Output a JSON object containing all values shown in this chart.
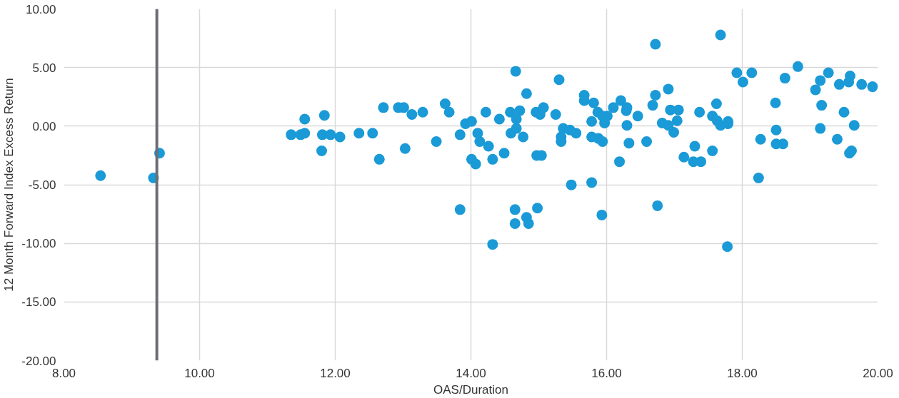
{
  "chart_data": {
    "type": "scatter",
    "xlabel": "OAS/Duration",
    "ylabel": "12 Month Forward Index Excess Return",
    "x": [
      8.54,
      9.32,
      9.41,
      11.35,
      11.49,
      11.55,
      11.55,
      11.84,
      11.81,
      11.8,
      11.93,
      12.07,
      12.35,
      12.55,
      12.65,
      12.71,
      12.93,
      13.01,
      13.03,
      13.13,
      13.29,
      13.49,
      13.62,
      13.68,
      13.84,
      13.84,
      13.92,
      14.01,
      14.01,
      14.07,
      14.1,
      14.13,
      14.22,
      14.26,
      14.32,
      14.32,
      14.42,
      14.49,
      14.58,
      14.59,
      14.66,
      14.65,
      14.65,
      14.67,
      14.67,
      14.72,
      14.77,
      14.82,
      14.82,
      14.85,
      14.96,
      14.97,
      14.98,
      15.02,
      15.07,
      15.04,
      15.25,
      15.3,
      15.33,
      15.33,
      15.36,
      15.48,
      15.46,
      15.55,
      15.67,
      15.67,
      15.78,
      15.78,
      15.78,
      15.81,
      15.87,
      15.93,
      15.88,
      15.94,
      15.94,
      15.97,
      16.01,
      16.1,
      16.21,
      16.19,
      16.29,
      16.3,
      16.3,
      16.33,
      16.46,
      16.59,
      16.68,
      16.72,
      16.72,
      16.75,
      16.82,
      16.91,
      16.91,
      16.94,
      16.99,
      17.06,
      17.04,
      17.14,
      17.28,
      17.3,
      17.37,
      17.39,
      17.56,
      17.56,
      17.62,
      17.63,
      17.68,
      17.68,
      17.79,
      17.79,
      17.78,
      17.92,
      18.01,
      18.14,
      18.24,
      18.27,
      18.49,
      18.5,
      18.5,
      18.6,
      18.63,
      18.82,
      19.08,
      19.15,
      19.15,
      19.17,
      19.27,
      19.4,
      19.43,
      19.5,
      19.57,
      19.59,
      19.58,
      19.61,
      19.65,
      19.76,
      19.92
    ],
    "series": [
      {
        "color": "#1a9ad6",
        "values": [
          -4.22,
          -4.42,
          -2.31,
          -0.73,
          -0.73,
          -0.6,
          0.6,
          0.92,
          -0.73,
          -2.11,
          -0.73,
          -0.92,
          -0.6,
          -0.6,
          -2.83,
          1.58,
          1.58,
          1.58,
          -1.91,
          0.99,
          1.19,
          -1.32,
          1.91,
          1.19,
          -0.73,
          -7.12,
          0.2,
          0.4,
          -2.83,
          -3.23,
          -0.6,
          -1.32,
          1.19,
          -1.71,
          -2.83,
          -10.09,
          0.6,
          -2.31,
          1.19,
          -0.6,
          4.68,
          -7.12,
          -8.31,
          0.6,
          -0.2,
          1.32,
          -0.92,
          2.77,
          -7.78,
          -8.31,
          1.19,
          -2.5,
          -6.99,
          0.99,
          1.58,
          -2.5,
          0.99,
          3.96,
          -1.32,
          -0.92,
          -0.2,
          -5.01,
          -0.33,
          -0.6,
          2.64,
          2.18,
          -0.92,
          -4.81,
          0.4,
          1.98,
          1.19,
          -7.58,
          -1.05,
          -1.32,
          0.86,
          0.26,
          0.86,
          1.58,
          2.18,
          -3.03,
          1.32,
          1.58,
          0.07,
          -1.45,
          0.86,
          -1.32,
          1.78,
          6.99,
          2.64,
          -6.79,
          0.26,
          0.07,
          3.16,
          1.38,
          -0.53,
          1.38,
          0.46,
          -2.64,
          -3.03,
          -1.71,
          1.19,
          -3.03,
          -2.11,
          0.86,
          1.91,
          0.46,
          7.78,
          0.07,
          0.4,
          0.2,
          -10.28,
          4.55,
          3.76,
          4.55,
          -4.42,
          -1.12,
          1.98,
          -0.33,
          -1.52,
          -1.52,
          4.09,
          5.08,
          3.1,
          3.89,
          -0.2,
          1.78,
          4.55,
          -1.12,
          3.56,
          1.19,
          3.76,
          4.28,
          -2.31,
          -2.11,
          0.07,
          3.56,
          3.36
        ]
      }
    ],
    "xlim": [
      8,
      20
    ],
    "ylim": [
      -20,
      10
    ],
    "xticks": [
      {
        "value": 8,
        "label": "8.00"
      },
      {
        "value": 10,
        "label": "10.00"
      },
      {
        "value": 12,
        "label": "12.00"
      },
      {
        "value": 14,
        "label": "14.00"
      },
      {
        "value": 16,
        "label": "16.00"
      },
      {
        "value": 18,
        "label": "18.00"
      },
      {
        "value": 20,
        "label": "20.00"
      }
    ],
    "yticks": [
      {
        "value": -20,
        "label": "-20.00"
      },
      {
        "value": -15,
        "label": "-15.00"
      },
      {
        "value": -10,
        "label": "-10.00"
      },
      {
        "value": -5,
        "label": "-5.00"
      },
      {
        "value": 0,
        "label": "0.00"
      },
      {
        "value": 5,
        "label": "5.00"
      },
      {
        "value": 10,
        "label": "10.00"
      }
    ],
    "ref_lines": [
      {
        "axis": "x",
        "value": 9.37,
        "color": "#6d6e71"
      }
    ],
    "grid": true,
    "marker": "circle"
  }
}
